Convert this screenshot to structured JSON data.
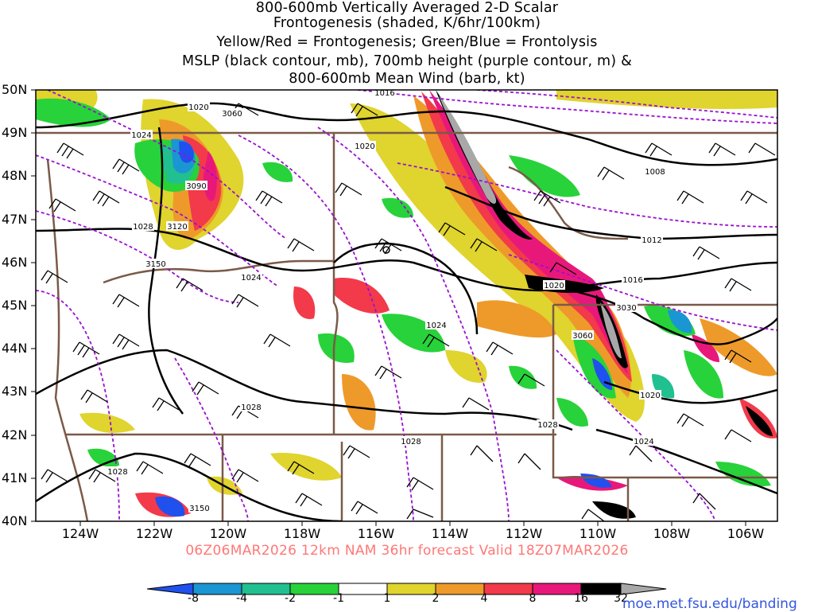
{
  "header": {
    "title_lines": [
      "800-600mb Vertically Averaged 2-D Scalar",
      "Frontogenesis (shaded, K/6hr/100km)",
      "Yellow/Red = Frontogenesis;  Green/Blue = Frontolysis",
      "MSLP (black contour, mb), 700mb height (purple contour, m) &",
      "800-600mb Mean Wind (barb, kt)"
    ]
  },
  "axes": {
    "lat_labels": [
      "50N",
      "49N",
      "48N",
      "47N",
      "46N",
      "45N",
      "44N",
      "43N",
      "42N",
      "41N",
      "40N"
    ],
    "lon_labels": [
      "124W",
      "122W",
      "120W",
      "118W",
      "116W",
      "114W",
      "112W",
      "110W",
      "108W",
      "106W"
    ]
  },
  "footer": {
    "valid_line": "06Z06MAR2026 12km NAM 36hr forecast Valid 18Z07MAR2026"
  },
  "legend": {
    "colors": [
      "#2050ee",
      "#1a96d2",
      "#20c090",
      "#28d23a",
      "#ffffff",
      "#e0d42e",
      "#ee9a2a",
      "#f23a4a",
      "#e8187a",
      "#000000",
      "#a8a8a8"
    ],
    "ticks": [
      "-8",
      "-4",
      "-2",
      "-1",
      "1",
      "2",
      "4",
      "8",
      "16",
      "32"
    ]
  },
  "contour_labels": {
    "mslp": [
      "1020",
      "1020",
      "1028",
      "1024",
      "1024",
      "1028",
      "1028",
      "1028",
      "1028",
      "1024",
      "1020",
      "1016",
      "1016",
      "1012",
      "1008",
      "1020",
      "1024"
    ],
    "height": [
      "3060",
      "3090",
      "3120",
      "3150",
      "3030",
      "3060",
      "3150"
    ]
  },
  "credit": "moe.met.fsu.edu/banding",
  "colors": {
    "mslp": "#000000",
    "height": "#9a10d0",
    "borders": "#7a5a48",
    "footer_text": "#ff7777",
    "credit_text": "#3355dd"
  }
}
